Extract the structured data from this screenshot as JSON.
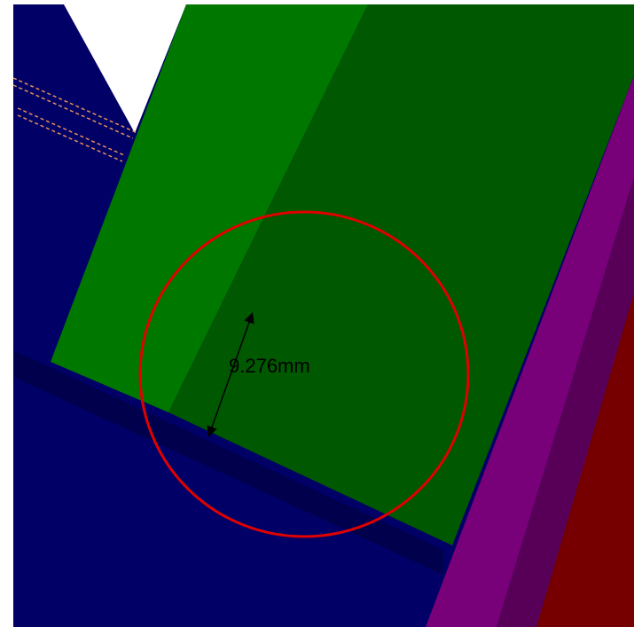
{
  "measurement": {
    "label": "9.276mm"
  }
}
